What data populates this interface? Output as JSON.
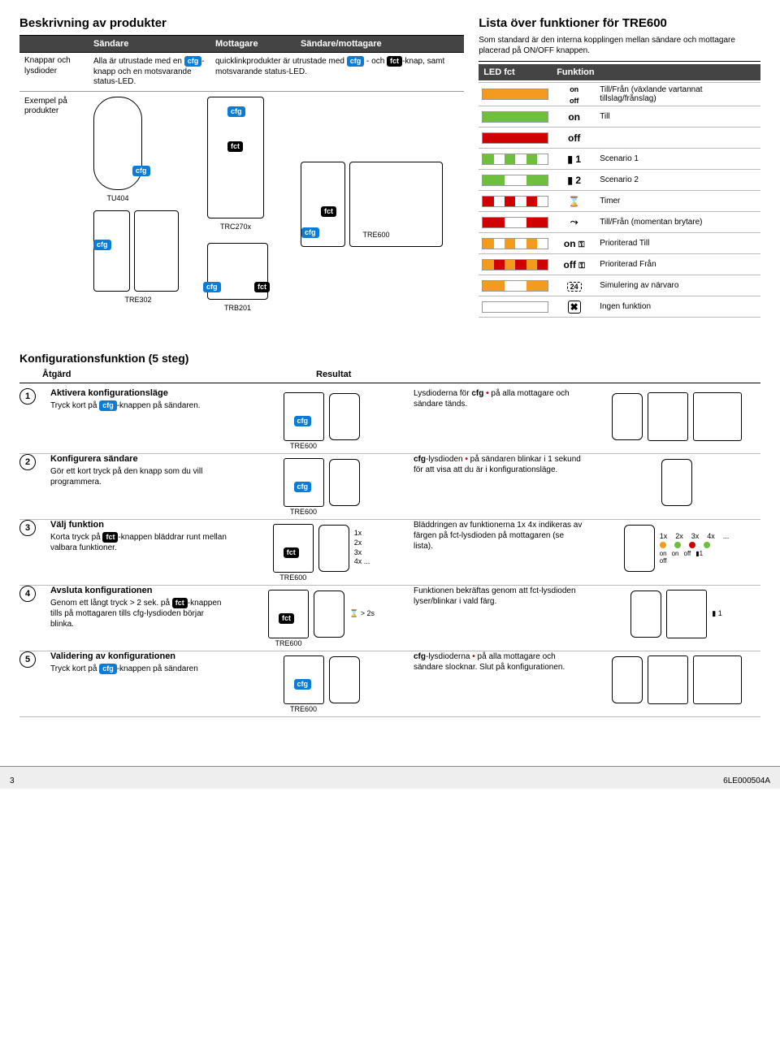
{
  "top": {
    "title": "Beskrivning av produkter",
    "headers": {
      "sender": "Sändare",
      "receiver": "Mottagare",
      "both": "Sändare/mottagare"
    },
    "row_label": "Knappar och lysdioder",
    "sender_txt_pre": "Alla är utrustade med en ",
    "sender_txt_post": "-knapp och en motsvarande status-LED.",
    "receiver_txt_pre": "quicklinkprodukter är utrustade med ",
    "receiver_txt_mid": " - och ",
    "receiver_txt_post": "-knap, samt motsvarande status-LED.",
    "example_label": "Exempel på produkter",
    "labels": {
      "tu404": "TU404",
      "tre302": "TRE302",
      "trc270x": "TRC270x",
      "trb201": "TRB201",
      "tre600": "TRE600"
    }
  },
  "fn": {
    "title": "Lista över funktioner för TRE600",
    "intro": "Som standard är den interna kopplingen mellan sändare och mottagare placerad på ON/OFF knappen.",
    "col_led": "LED fct",
    "col_fn": "Funktion",
    "rows": [
      {
        "led": [
          "#f29b1f",
          "#f29b1f",
          "#f29b1f",
          "#f29b1f",
          "#f29b1f",
          "#f29b1f"
        ],
        "icon_html": "<span style='font-size:9px;line-height:1'>on<br>off</span>",
        "desc": "Till/Från (växlande vartannat tillslag/frånslag)"
      },
      {
        "led": [
          "#6fbf3f",
          "#6fbf3f",
          "#6fbf3f",
          "#6fbf3f",
          "#6fbf3f",
          "#6fbf3f"
        ],
        "icon_html": "<b>on</b>",
        "desc": "Till"
      },
      {
        "led": [
          "#d10000",
          "#d10000",
          "#d10000",
          "#d10000",
          "#d10000",
          "#d10000"
        ],
        "icon_html": "<b>off</b>",
        "desc": ""
      },
      {
        "led": [
          "#6fbf3f",
          "#fff",
          "#6fbf3f",
          "#fff",
          "#6fbf3f",
          "#fff"
        ],
        "icon_html": "▮ 1",
        "desc": "Scenario 1"
      },
      {
        "led": [
          "#6fbf3f",
          "#6fbf3f",
          "#fff",
          "#fff",
          "#6fbf3f",
          "#6fbf3f"
        ],
        "icon_html": "▮ 2",
        "desc": "Scenario 2"
      },
      {
        "led": [
          "#d10000",
          "#fff",
          "#d10000",
          "#fff",
          "#d10000",
          "#fff"
        ],
        "icon_html": "<span class='ic-timer'></span>",
        "desc": "Timer"
      },
      {
        "led": [
          "#d10000",
          "#d10000",
          "#fff",
          "#fff",
          "#d10000",
          "#d10000"
        ],
        "icon_html": "<span class='ic-mom'></span>",
        "desc": "Till/Från (momentan brytare)"
      },
      {
        "led": [
          "#f29b1f",
          "#fff",
          "#f29b1f",
          "#fff",
          "#f29b1f",
          "#fff"
        ],
        "icon_html": "<b>on</b> <span class='ic-key'></span>",
        "desc": "Prioriterad Till"
      },
      {
        "led": [
          "#f29b1f",
          "#d10000",
          "#f29b1f",
          "#d10000",
          "#f29b1f",
          "#d10000"
        ],
        "icon_html": "<b>off</b> <span class='ic-key'></span>",
        "desc": "Prioriterad Från"
      },
      {
        "led": [
          "#f29b1f",
          "#f29b1f",
          "#fff",
          "#fff",
          "#f29b1f",
          "#f29b1f"
        ],
        "icon_html": "<span style='border:1px dashed #000;padding:0 3px;border-radius:3px;font-size:9px'>24</span>",
        "desc": "Simulering av närvaro"
      },
      {
        "led": [
          "#fff",
          "#fff",
          "#fff",
          "#fff",
          "#fff",
          "#fff"
        ],
        "icon_html": "<span class='ic-x'></span>",
        "desc": "Ingen funktion"
      }
    ]
  },
  "cfg": {
    "title": "Konfigurationsfunktion (5 steg)",
    "hdr_action": "Åtgärd",
    "hdr_result": "Resultat",
    "steps": [
      {
        "n": "1",
        "title": "Aktivera konfigurationsläge",
        "action_pre": "Tryck kort på ",
        "action_post": "-knappen på sändaren.",
        "result_pre": "Lysdioderna för ",
        "result_mid": "cfg",
        "result_post": " på alla mottagare och sändare tänds."
      },
      {
        "n": "2",
        "title": "Konfigurera sändare",
        "action_full": "Gör ett kort tryck på den knapp som du vill programmera.",
        "result_pre": "",
        "result_mid": "cfg",
        "result_post2": "-lysdioden",
        "result_tail": " på sändaren blinkar i 1 sekund för att visa att du är i konfigurationsläge."
      },
      {
        "n": "3",
        "title": "Välj funktion",
        "action_pre": "Korta tryck på ",
        "action_post": "-knappen bläddrar runt mellan valbara funktioner.",
        "result_full": "Bläddringen av funktionerna 1x 4x indikeras av färgen på fct-lysdioden på mottagaren (se lista).",
        "seq": "1x  2x  3x  4x  ...",
        "seq_icons": "on/off  on  off  ▮1"
      },
      {
        "n": "4",
        "title": "Avsluta konfigurationen",
        "action_pre": "Genom ett långt tryck > 2 sek. på ",
        "action_post": "-knappen tills på mottagaren tills cfg-lysdioden börjar blinka.",
        "result_full": "Funktionen bekräftas genom att fct-lysdioden lyser/blinkar i vald färg.",
        "timer": "> 2s"
      },
      {
        "n": "5",
        "title": "Validering av konfigurationen",
        "action_pre": "Tryck kort på ",
        "action_post": "-knappen på sändaren",
        "result_pre": "",
        "result_mid": "cfg",
        "result_post2": "-lysdioderna",
        "result_tail": " på alla mottagare och sändare slocknar. Slut på konfigurationen."
      }
    ]
  },
  "badges": {
    "cfg": "cfg",
    "fct": "fct"
  },
  "footer": {
    "page": "3",
    "doc": "6LE000504A"
  },
  "colors": {
    "orange": "#f29b1f",
    "green": "#6fbf3f",
    "red": "#d10000",
    "blue": "#0a7bd6"
  }
}
